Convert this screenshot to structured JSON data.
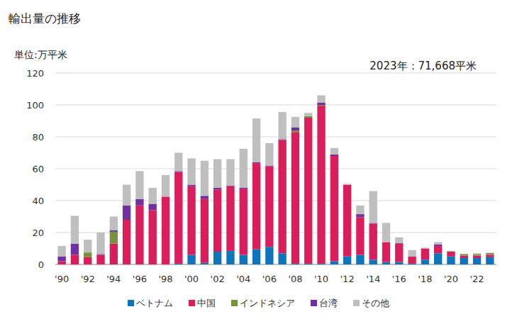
{
  "chart_data": {
    "type": "bar",
    "stacked": true,
    "title": "輸出量の推移",
    "y_label": "単位:万平米",
    "annotation": "2023年：71,668平米",
    "categories": [
      "'90",
      null,
      "'92",
      null,
      "'94",
      null,
      "'96",
      null,
      "'98",
      null,
      "'00",
      null,
      "'02",
      null,
      "'04",
      null,
      "'06",
      null,
      "'08",
      null,
      "'10",
      null,
      "'12",
      null,
      "'14",
      null,
      "'16",
      null,
      "'18",
      null,
      "'20",
      null,
      "'22",
      null
    ],
    "series": [
      {
        "name": "ベトナム",
        "color": "#0e74bc",
        "values": [
          0,
          0,
          0,
          0,
          0,
          0,
          0,
          0,
          0,
          0.5,
          6,
          1,
          8,
          8.5,
          6,
          9.5,
          11,
          7,
          0.5,
          0.5,
          0.5,
          2,
          5,
          6,
          3,
          1.5,
          1.5,
          0.5,
          3,
          7,
          5,
          4,
          4,
          4.5
        ]
      },
      {
        "name": "中国",
        "color": "#d91e5b",
        "values": [
          2,
          6,
          4.5,
          6,
          13,
          28,
          37,
          34,
          42.5,
          57.5,
          43,
          40,
          39,
          40.5,
          41.5,
          54,
          50.5,
          71,
          82.5,
          91.5,
          99,
          66,
          45,
          23.5,
          22.5,
          12.5,
          11.5,
          4.5,
          7,
          4.5,
          3,
          1.5,
          1.5,
          1.5
        ]
      },
      {
        "name": "インドネシア",
        "color": "#77933c",
        "values": [
          0,
          0,
          3,
          0,
          7.5,
          0,
          0,
          0,
          0,
          0,
          0,
          0,
          0,
          0,
          0,
          0,
          0,
          0,
          1,
          1,
          0.5,
          0,
          0,
          0,
          0,
          0,
          0,
          0,
          0,
          0,
          0,
          1,
          1,
          1
        ]
      },
      {
        "name": "台湾",
        "color": "#7030a0",
        "values": [
          3,
          7,
          0,
          0.5,
          1,
          9,
          4,
          4,
          0,
          0.5,
          1,
          2,
          1,
          0.5,
          0.5,
          0.5,
          0.5,
          0.5,
          2,
          0,
          1.5,
          1,
          0,
          2,
          0.5,
          0,
          0.5,
          0,
          0,
          1,
          0,
          0,
          0,
          0.2
        ]
      },
      {
        "name": "その他",
        "color": "#bfbfbf",
        "values": [
          6.5,
          17.5,
          8,
          13.5,
          8.5,
          13,
          17.5,
          10,
          13.5,
          11.5,
          16.5,
          22,
          18,
          16.5,
          24.5,
          27.5,
          14,
          17,
          6.5,
          2,
          4.5,
          4,
          0.5,
          5.5,
          20,
          12,
          3.5,
          4,
          0.5,
          1.5,
          0.5,
          0,
          0.5,
          0
        ]
      }
    ],
    "ylim": [
      0,
      120
    ],
    "yticks": [
      0,
      20,
      40,
      60,
      80,
      100,
      120
    ],
    "grid": true,
    "legend": "bottom"
  }
}
